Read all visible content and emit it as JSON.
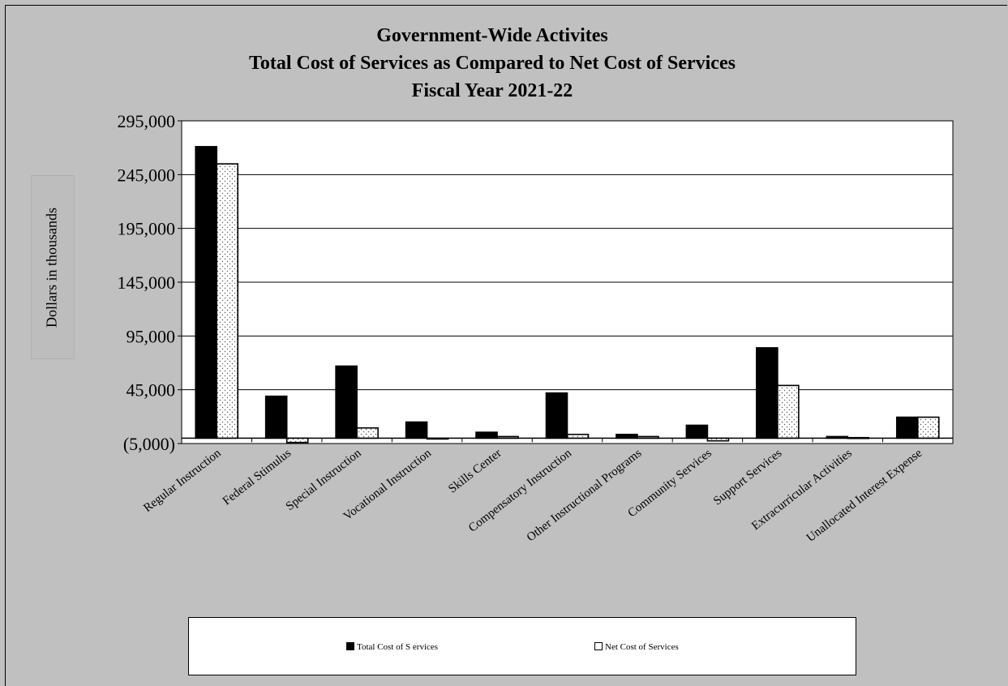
{
  "chart_data": {
    "type": "bar",
    "title": [
      "Government-Wide Activites",
      "Total Cost of Services as Compared to Net Cost of Services",
      "Fiscal Year 2021-22"
    ],
    "ylabel": "Dollars in thousands",
    "xlabel": "",
    "ylim": [
      -5000,
      295000
    ],
    "yticks": [
      -5000,
      45000,
      95000,
      145000,
      195000,
      245000,
      295000
    ],
    "ytick_labels": [
      "(5,000)",
      "45,000",
      "95,000",
      "145,000",
      "195,000",
      "245,000",
      "295,000"
    ],
    "grid": "horizontal",
    "legend": "bottom",
    "categories": [
      "Regular Instruction",
      "Federal Stimulus",
      "Special Instruction",
      "Vocational Instruction",
      "Skills Center",
      "Compensatory Instruction",
      "Other Instructional Programs",
      "Community Services",
      "Support Services",
      "Extracurricular Activities",
      "Unallocated Interest Expense"
    ],
    "series": [
      {
        "name": "Total Cost of Services",
        "color": "#000000",
        "values": [
          271000,
          39000,
          67000,
          15000,
          5500,
          42000,
          3500,
          12000,
          84000,
          1500,
          19500
        ]
      },
      {
        "name": "Net Cost of Services",
        "color": "#ffffff",
        "pattern": "dots",
        "values": [
          255000,
          -4000,
          9500,
          -500,
          1500,
          3500,
          1500,
          -2500,
          49000,
          500,
          19500
        ]
      }
    ]
  },
  "legend_labels": {
    "total": "Total Cost of S ervices",
    "net": "Net Cost of Services"
  }
}
